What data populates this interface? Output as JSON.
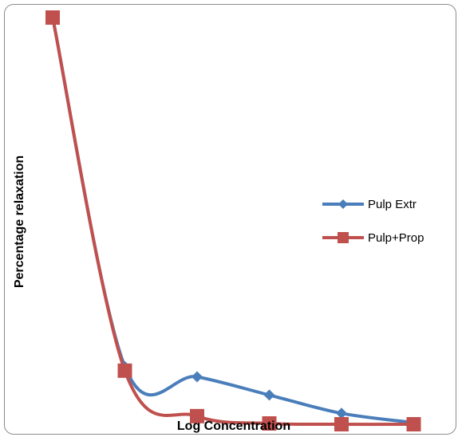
{
  "chart_data": {
    "type": "line",
    "title": "",
    "xlabel": "Log Concentration",
    "ylabel": "Percentage relaxation",
    "x": [
      1,
      2,
      3,
      4,
      5,
      6
    ],
    "ylim": [
      0,
      100
    ],
    "grid": false,
    "legend_position": "right",
    "smooth": true,
    "series": [
      {
        "name": "Pulp Extr",
        "color": "#4A7EBB",
        "marker": "diamond",
        "values": [
          100,
          14,
          11.5,
          7,
          2.5,
          0.2
        ]
      },
      {
        "name": "Pulp+Prop",
        "color": "#C0504D",
        "marker": "square",
        "values": [
          100,
          13,
          1.8,
          0,
          -0.2,
          -0.2
        ]
      }
    ]
  }
}
